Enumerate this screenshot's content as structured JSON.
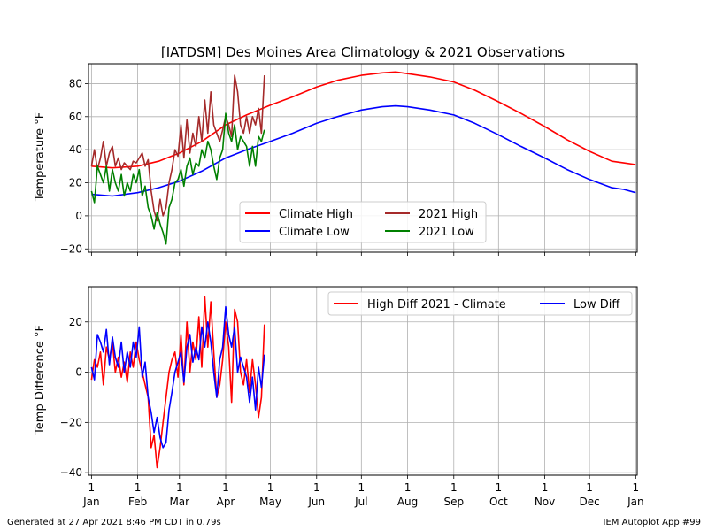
{
  "footer": {
    "generated": "Generated at 27 Apr 2021 8:46 PM CDT in 0.79s",
    "app": "IEM Autoplot App #99"
  },
  "colors": {
    "climate_high": "#ff0000",
    "climate_low": "#0000ff",
    "obs_high": "#a52a2a",
    "obs_low": "#008000",
    "high_diff": "#ff0000",
    "low_diff": "#0000ff",
    "grid": "#b0b0b0"
  },
  "chart_data": [
    {
      "type": "line",
      "title": "[IATDSM] Des Moines Area Climatology & 2021 Observations",
      "xlabel": "",
      "ylabel": "Temperature °F",
      "ylim": [
        -22,
        92
      ],
      "yticks": [
        -20,
        0,
        20,
        40,
        60,
        80
      ],
      "xticks": [
        {
          "day": 1,
          "label": "1\nJan"
        },
        {
          "day": 32,
          "label": "1\nFeb"
        },
        {
          "day": 60,
          "label": "1\nMar"
        },
        {
          "day": 91,
          "label": "1\nApr"
        },
        {
          "day": 121,
          "label": "1\nMay"
        },
        {
          "day": 152,
          "label": "1\nJun"
        },
        {
          "day": 182,
          "label": "1\nJul"
        },
        {
          "day": 213,
          "label": "1\nAug"
        },
        {
          "day": 244,
          "label": "1\nSep"
        },
        {
          "day": 274,
          "label": "1\nOct"
        },
        {
          "day": 305,
          "label": "1\nNov"
        },
        {
          "day": 335,
          "label": "1\nDec"
        },
        {
          "day": 366,
          "label": "1\nJan"
        }
      ],
      "grid": true,
      "legend_position": "lower-center",
      "legend_columns": 2,
      "series": [
        {
          "name": "Climate High",
          "color_key": "climate_high",
          "x": [
            1,
            15,
            32,
            46,
            60,
            75,
            91,
            105,
            121,
            136,
            152,
            166,
            182,
            196,
            205,
            213,
            228,
            244,
            258,
            274,
            289,
            305,
            320,
            335,
            350,
            358,
            366
          ],
          "y": [
            30,
            29,
            30,
            33,
            38,
            45,
            55,
            61,
            67,
            72,
            78,
            82,
            85,
            86.5,
            87,
            86,
            84,
            81,
            76,
            69,
            62,
            54,
            46,
            39,
            33,
            32,
            31
          ]
        },
        {
          "name": "Climate Low",
          "color_key": "climate_low",
          "x": [
            1,
            15,
            32,
            46,
            60,
            75,
            91,
            105,
            121,
            136,
            152,
            166,
            182,
            196,
            205,
            213,
            228,
            244,
            258,
            274,
            289,
            305,
            320,
            335,
            350,
            358,
            366
          ],
          "y": [
            13,
            12,
            14,
            17,
            21,
            27,
            35,
            40,
            45,
            50,
            56,
            60,
            64,
            66,
            66.5,
            66,
            64,
            61,
            56,
            49,
            42,
            35,
            28,
            22,
            17,
            16,
            14
          ]
        },
        {
          "name": "2021 High",
          "color_key": "obs_high",
          "x": [
            1,
            3,
            5,
            7,
            9,
            11,
            13,
            15,
            17,
            19,
            21,
            23,
            25,
            27,
            29,
            31,
            33,
            35,
            37,
            39,
            41,
            43,
            45,
            47,
            49,
            51,
            53,
            55,
            57,
            59,
            61,
            63,
            65,
            67,
            69,
            71,
            73,
            75,
            77,
            79,
            81,
            83,
            85,
            87,
            89,
            91,
            93,
            95,
            97,
            99,
            101,
            103,
            105,
            107,
            109,
            111,
            113,
            115,
            117
          ],
          "y": [
            30,
            40,
            28,
            35,
            45,
            30,
            38,
            42,
            30,
            35,
            28,
            32,
            30,
            28,
            33,
            32,
            35,
            38,
            30,
            34,
            15,
            3,
            -3,
            10,
            0,
            5,
            20,
            28,
            40,
            36,
            55,
            35,
            58,
            38,
            50,
            42,
            60,
            45,
            70,
            50,
            75,
            55,
            50,
            45,
            52,
            60,
            55,
            48,
            85,
            75,
            55,
            50,
            60,
            50,
            60,
            55,
            65,
            50,
            85
          ]
        },
        {
          "name": "2021 Low",
          "color_key": "obs_low",
          "x": [
            1,
            3,
            5,
            7,
            9,
            11,
            13,
            15,
            17,
            19,
            21,
            23,
            25,
            27,
            29,
            31,
            33,
            35,
            37,
            39,
            41,
            43,
            45,
            47,
            49,
            51,
            53,
            55,
            57,
            59,
            61,
            63,
            65,
            67,
            69,
            71,
            73,
            75,
            77,
            79,
            81,
            83,
            85,
            87,
            89,
            91,
            93,
            95,
            97,
            99,
            101,
            103,
            105,
            107,
            109,
            111,
            113,
            115,
            117
          ],
          "y": [
            15,
            8,
            30,
            25,
            20,
            30,
            15,
            28,
            20,
            15,
            25,
            12,
            20,
            15,
            25,
            20,
            28,
            12,
            18,
            5,
            0,
            -8,
            2,
            -5,
            -10,
            -17,
            5,
            10,
            20,
            22,
            28,
            18,
            30,
            35,
            25,
            32,
            30,
            40,
            35,
            45,
            40,
            30,
            22,
            35,
            40,
            62,
            50,
            45,
            55,
            40,
            48,
            45,
            42,
            30,
            42,
            30,
            48,
            45,
            52
          ]
        }
      ]
    },
    {
      "type": "line",
      "title": "",
      "xlabel": "",
      "ylabel": "Temp Difference °F",
      "ylim": [
        -41,
        34
      ],
      "yticks": [
        -40,
        -20,
        0,
        20
      ],
      "xticks": [
        {
          "day": 1,
          "label": "1\nJan"
        },
        {
          "day": 32,
          "label": "1\nFeb"
        },
        {
          "day": 60,
          "label": "1\nMar"
        },
        {
          "day": 91,
          "label": "1\nApr"
        },
        {
          "day": 121,
          "label": "1\nMay"
        },
        {
          "day": 152,
          "label": "1\nJun"
        },
        {
          "day": 182,
          "label": "1\nJul"
        },
        {
          "day": 213,
          "label": "1\nAug"
        },
        {
          "day": 244,
          "label": "1\nSep"
        },
        {
          "day": 274,
          "label": "1\nOct"
        },
        {
          "day": 305,
          "label": "1\nNov"
        },
        {
          "day": 335,
          "label": "1\nDec"
        },
        {
          "day": 366,
          "label": "1\nJan"
        }
      ],
      "grid": true,
      "legend_position": "upper-right",
      "legend_columns": 2,
      "series": [
        {
          "name": "High Diff 2021 - Climate",
          "color_key": "high_diff",
          "x": [
            1,
            3,
            5,
            7,
            9,
            11,
            13,
            15,
            17,
            19,
            21,
            23,
            25,
            27,
            29,
            31,
            33,
            35,
            37,
            39,
            41,
            43,
            45,
            47,
            49,
            51,
            53,
            55,
            57,
            59,
            61,
            63,
            65,
            67,
            69,
            71,
            73,
            75,
            77,
            79,
            81,
            83,
            85,
            87,
            89,
            91,
            93,
            95,
            97,
            99,
            101,
            103,
            105,
            107,
            109,
            111,
            113,
            115,
            117
          ],
          "y": [
            -3,
            5,
            2,
            8,
            -5,
            10,
            5,
            12,
            0,
            6,
            -2,
            4,
            -4,
            8,
            2,
            12,
            5,
            0,
            -5,
            -10,
            -30,
            -25,
            -38,
            -30,
            -20,
            -10,
            0,
            5,
            8,
            -2,
            15,
            -5,
            20,
            0,
            12,
            5,
            22,
            2,
            30,
            10,
            28,
            8,
            -10,
            -5,
            5,
            20,
            10,
            -12,
            25,
            20,
            0,
            -5,
            5,
            -8,
            5,
            -5,
            -18,
            -10,
            19
          ]
        },
        {
          "name": "Low Diff",
          "color_key": "low_diff",
          "x": [
            1,
            3,
            5,
            7,
            9,
            11,
            13,
            15,
            17,
            19,
            21,
            23,
            25,
            27,
            29,
            31,
            33,
            35,
            37,
            39,
            41,
            43,
            45,
            47,
            49,
            51,
            53,
            55,
            57,
            59,
            61,
            63,
            65,
            67,
            69,
            71,
            73,
            75,
            77,
            79,
            81,
            83,
            85,
            87,
            89,
            91,
            93,
            95,
            97,
            99,
            101,
            103,
            105,
            107,
            109,
            111,
            113,
            115,
            117
          ],
          "y": [
            2,
            -3,
            15,
            12,
            8,
            17,
            3,
            14,
            6,
            2,
            12,
            0,
            8,
            2,
            12,
            6,
            18,
            -2,
            4,
            -10,
            -16,
            -24,
            -18,
            -26,
            -30,
            -28,
            -15,
            -8,
            0,
            4,
            8,
            -4,
            10,
            15,
            4,
            10,
            5,
            18,
            10,
            20,
            12,
            0,
            -10,
            5,
            10,
            26,
            15,
            10,
            18,
            0,
            6,
            2,
            -2,
            -12,
            -2,
            -15,
            2,
            -6,
            7
          ]
        }
      ]
    }
  ]
}
